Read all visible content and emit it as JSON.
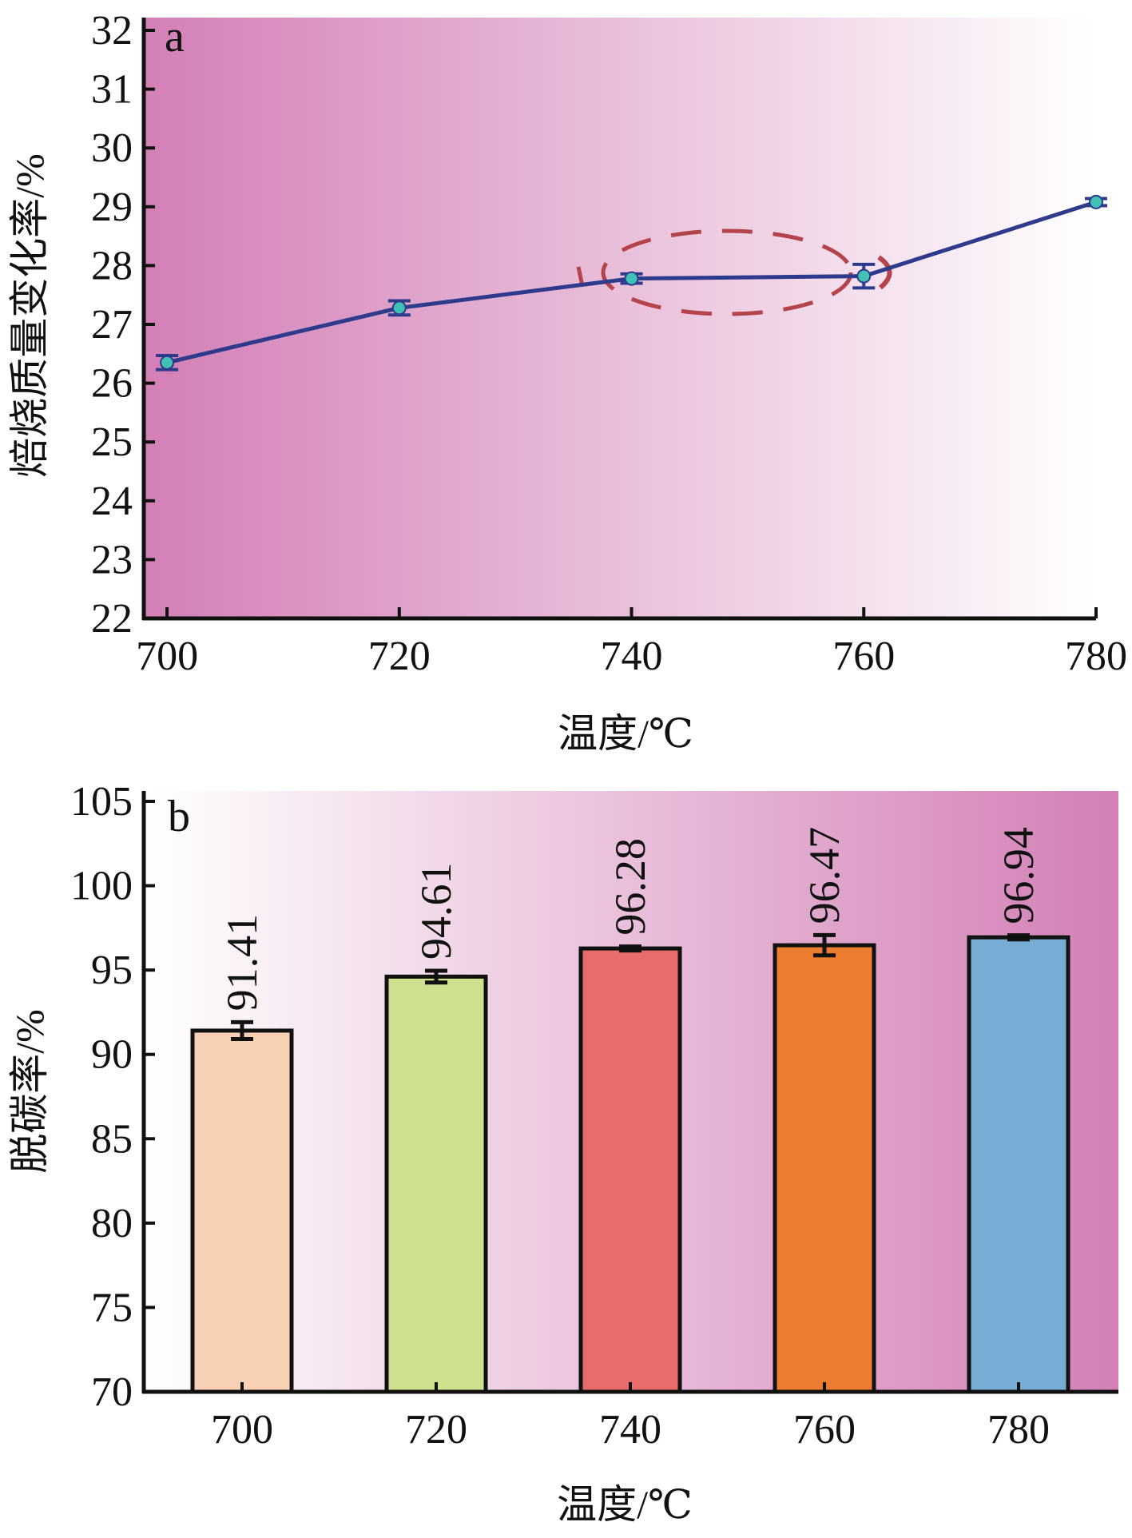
{
  "chart_data": [
    {
      "panel_label": "a",
      "type": "line",
      "x": [
        700,
        720,
        740,
        760,
        780
      ],
      "y": [
        26.35,
        27.28,
        27.78,
        27.82,
        29.08
      ],
      "error": [
        0.12,
        0.12,
        0.08,
        0.2,
        0.06
      ],
      "xlabel": "温度/℃",
      "ylabel": "焙烧质量变化率/%",
      "xlim": [
        698,
        780
      ],
      "ylim": [
        22,
        32
      ],
      "x_ticks": [
        "700",
        "720",
        "740",
        "760",
        "780"
      ],
      "y_ticks": [
        "22",
        "23",
        "24",
        "25",
        "26",
        "27",
        "28",
        "29",
        "30",
        "31",
        "32"
      ],
      "annotation": "dashed ellipse around 740–760 points",
      "line_color": "#2e3a8c",
      "marker_color": "#3fc1b4",
      "annotation_color": "#b5434a",
      "background_gradient": [
        "#d37fb6",
        "#ffffff"
      ]
    },
    {
      "panel_label": "b",
      "type": "bar",
      "categories": [
        "700",
        "720",
        "740",
        "760",
        "780"
      ],
      "values": [
        91.41,
        94.61,
        96.28,
        96.47,
        96.94
      ],
      "value_labels": [
        "91.41",
        "94.61",
        "96.28",
        "96.47",
        "96.94"
      ],
      "error": [
        0.5,
        0.35,
        0.12,
        0.6,
        0.12
      ],
      "xlabel": "温度/℃",
      "ylabel": "脱碳率/%",
      "ylim": [
        70,
        105
      ],
      "y_ticks": [
        "70",
        "75",
        "80",
        "85",
        "90",
        "95",
        "100",
        "105"
      ],
      "bar_colors": [
        "#f9d2b5",
        "#cfe08f",
        "#e86c6a",
        "#ec7c2f",
        "#77acd4"
      ],
      "background_gradient": [
        "#ffffff",
        "#d37fb6"
      ]
    }
  ]
}
